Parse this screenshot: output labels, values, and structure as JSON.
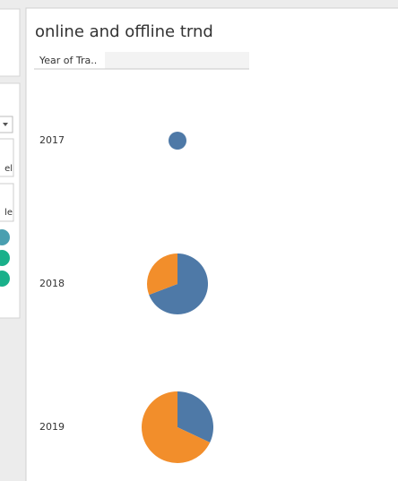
{
  "left_panel": {
    "fragments": [
      "el",
      "le"
    ]
  },
  "chart_data": {
    "type": "pie",
    "title": "online and offline trnd",
    "row_header": "Year of Tra..",
    "categories": [
      "2017",
      "2018",
      "2019"
    ],
    "series": [
      {
        "color": "#4e79a7",
        "values": [
          100,
          800,
          512
        ]
      },
      {
        "color": "#f28e2b",
        "values": [
          0,
          356,
          1088
        ]
      }
    ]
  }
}
